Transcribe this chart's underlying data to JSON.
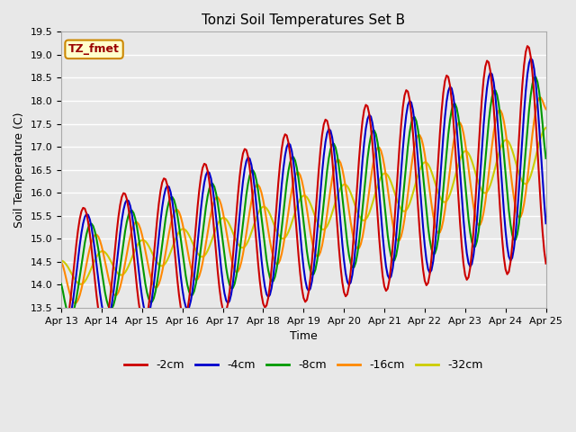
{
  "title": "Tonzi Soil Temperatures Set B",
  "xlabel": "Time",
  "ylabel": "Soil Temperature (C)",
  "ylim": [
    13.5,
    19.5
  ],
  "yticks": [
    13.5,
    14.0,
    14.5,
    15.0,
    15.5,
    16.0,
    16.5,
    17.0,
    17.5,
    18.0,
    18.5,
    19.0,
    19.5
  ],
  "fig_width": 6.4,
  "fig_height": 4.8,
  "dpi": 100,
  "bg_color": "#e8e8e8",
  "plot_bg_color": "#e8e8e8",
  "grid_color": "#ffffff",
  "colors": {
    "-2cm": "#cc0000",
    "-4cm": "#0000cc",
    "-8cm": "#009900",
    "-16cm": "#ff8800",
    "-32cm": "#cccc00"
  },
  "lw": 1.5,
  "x_tick_labels": [
    "Apr 13",
    "Apr 14",
    "Apr 15",
    "Apr 16",
    "Apr 17",
    "Apr 18",
    "Apr 19",
    "Apr 20",
    "Apr 21",
    "Apr 22",
    "Apr 23",
    "Apr 24",
    "Apr 25"
  ],
  "legend_label": "TZ_fmet",
  "annotation_color": "#990000",
  "annotation_bg": "#ffffcc",
  "annotation_edge": "#cc8800"
}
